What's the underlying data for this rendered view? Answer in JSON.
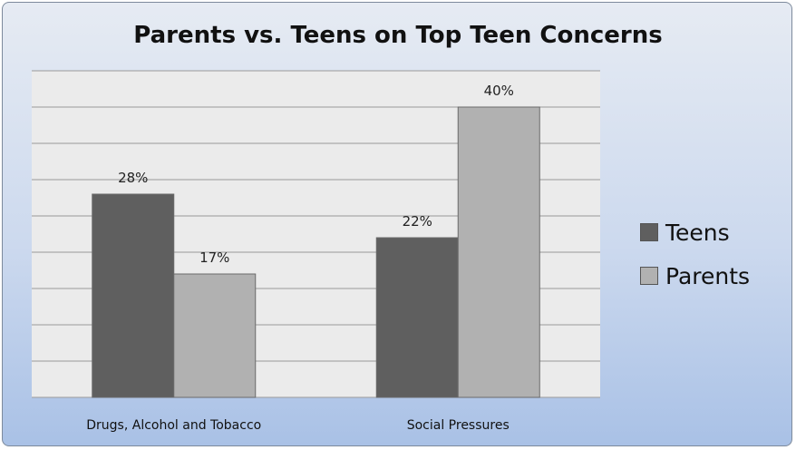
{
  "chart_data": {
    "type": "bar",
    "title": "Parents vs. Teens on Top Teen Concerns",
    "categories": [
      "Drugs, Alcohol and Tobacco",
      "Social Pressures"
    ],
    "series": [
      {
        "name": "Teens",
        "values": [
          28,
          22
        ],
        "labels": [
          "28%",
          "22%"
        ],
        "color": "#5f5f5f"
      },
      {
        "name": "Parents",
        "values": [
          17,
          40
        ],
        "labels": [
          "17%",
          "40%"
        ],
        "color": "#b1b1b1"
      }
    ],
    "ylim": [
      0,
      45
    ],
    "grid": true,
    "legend_position": "right"
  }
}
